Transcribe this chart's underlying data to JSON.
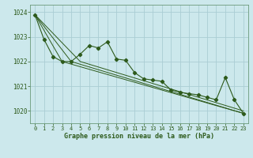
{
  "title": "Graphe pression niveau de la mer (hPa)",
  "bg_color": "#cce8ec",
  "grid_color": "#aacdd4",
  "line_color": "#2d5a1b",
  "text_color": "#2d5a1b",
  "xlim": [
    -0.5,
    23.5
  ],
  "ylim": [
    1019.5,
    1024.3
  ],
  "yticks": [
    1020,
    1021,
    1022,
    1023,
    1024
  ],
  "xticks": [
    0,
    1,
    2,
    3,
    4,
    5,
    6,
    7,
    8,
    9,
    10,
    11,
    12,
    13,
    14,
    15,
    16,
    17,
    18,
    19,
    20,
    21,
    22,
    23
  ],
  "series": [
    {
      "x": [
        0,
        1,
        2,
        3,
        4,
        5,
        6,
        7,
        8,
        9,
        10,
        11,
        12,
        13,
        14,
        15,
        16,
        17,
        18,
        19,
        20,
        21,
        22,
        23
      ],
      "y": [
        1023.9,
        1022.9,
        1022.2,
        1022.0,
        1022.0,
        1022.3,
        1022.65,
        1022.55,
        1022.8,
        1022.1,
        1022.05,
        1021.55,
        1021.3,
        1021.25,
        1021.2,
        1020.85,
        1020.75,
        1020.7,
        1020.65,
        1020.55,
        1020.45,
        1021.35,
        1020.45,
        1019.9
      ],
      "marker": true
    },
    {
      "x": [
        0,
        3,
        23
      ],
      "y": [
        1023.9,
        1022.0,
        1019.9
      ],
      "marker": false
    },
    {
      "x": [
        0,
        4,
        23
      ],
      "y": [
        1023.9,
        1022.0,
        1019.9
      ],
      "marker": false
    },
    {
      "x": [
        0,
        5,
        23
      ],
      "y": [
        1023.9,
        1022.0,
        1020.0
      ],
      "marker": false
    }
  ]
}
